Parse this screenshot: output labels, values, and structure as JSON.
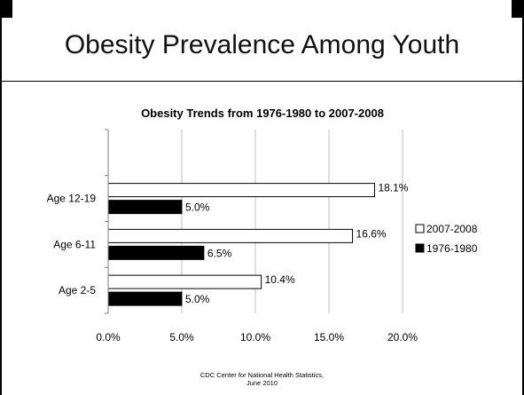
{
  "slide": {
    "title": "Obesity Prevalence Among Youth",
    "source_line1": "CDC Center for National Health Statistics,",
    "source_line2": "June 2010"
  },
  "chart_data": {
    "type": "bar",
    "orientation": "horizontal",
    "title": "Obesity Trends from 1976-1980 to 2007-2008",
    "categories": [
      "Age 12-19",
      "Age 6-11",
      "Age 2-5"
    ],
    "series": [
      {
        "name": "2007-2008",
        "values": [
          18.1,
          16.6,
          10.4
        ],
        "labels": [
          "18.1%",
          "16.6%",
          "10.4%"
        ],
        "color": "#ffffff"
      },
      {
        "name": "1976-1980",
        "values": [
          5.0,
          6.5,
          5.0
        ],
        "labels": [
          "5.0%",
          "6.5%",
          "5.0%"
        ],
        "color": "#000000"
      }
    ],
    "x_ticks": [
      0,
      5,
      10,
      15,
      20
    ],
    "x_tick_labels": [
      "0.0%",
      "5.0%",
      "10.0%",
      "15.0%",
      "20.0%"
    ],
    "xlim": [
      0,
      20
    ],
    "grid": true,
    "legend_position": "right"
  }
}
